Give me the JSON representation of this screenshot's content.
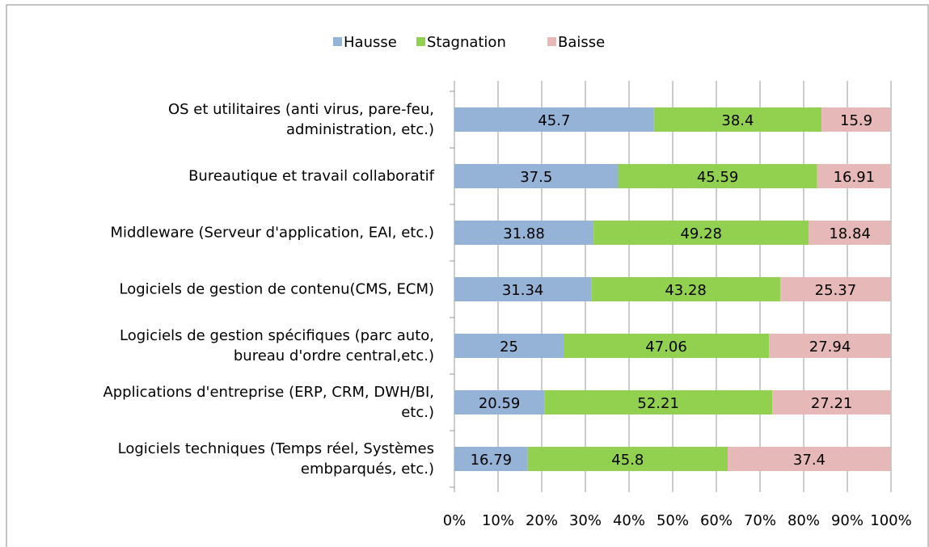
{
  "chart_data": {
    "type": "stacked-horizontal-bar",
    "categories": [
      "OS et utilitaires (anti virus, pare-feu,\nadministration, etc.)",
      "Bureautique et travail collaboratif",
      "Middleware (Serveur d'application, EAI, etc.)",
      "Logiciels de gestion de contenu(CMS, ECM)",
      "Logiciels de gestion spécifiques (parc auto,\nbureau d'ordre central,etc.)",
      "Applications d'entreprise (ERP, CRM, DWH/BI,\netc.)",
      "Logiciels techniques (Temps réel, Systèmes\nembparqués, etc.)"
    ],
    "series": [
      {
        "name": "Hausse",
        "color": "#95b3d7",
        "values": [
          45.7,
          37.5,
          31.88,
          31.34,
          25,
          20.59,
          16.79
        ]
      },
      {
        "name": "Stagnation",
        "color": "#92d050",
        "values": [
          38.4,
          45.59,
          49.28,
          43.28,
          47.06,
          52.21,
          45.8
        ]
      },
      {
        "name": "Baisse",
        "color": "#e6b9b8",
        "values": [
          15.9,
          16.91,
          18.84,
          25.37,
          27.94,
          27.21,
          37.4
        ]
      }
    ],
    "xlim": [
      0,
      100
    ],
    "xticks": [
      {
        "value": 0,
        "label": "0%"
      },
      {
        "value": 10,
        "label": "10%"
      },
      {
        "value": 20,
        "label": "20%"
      },
      {
        "value": 30,
        "label": "30%"
      },
      {
        "value": 40,
        "label": "40%"
      },
      {
        "value": 50,
        "label": "50%"
      },
      {
        "value": 60,
        "label": "60%"
      },
      {
        "value": 70,
        "label": "70%"
      },
      {
        "value": 80,
        "label": "80%"
      },
      {
        "value": 90,
        "label": "90%"
      },
      {
        "value": 100,
        "label": "100%"
      }
    ],
    "grid": true,
    "legend": "top"
  }
}
